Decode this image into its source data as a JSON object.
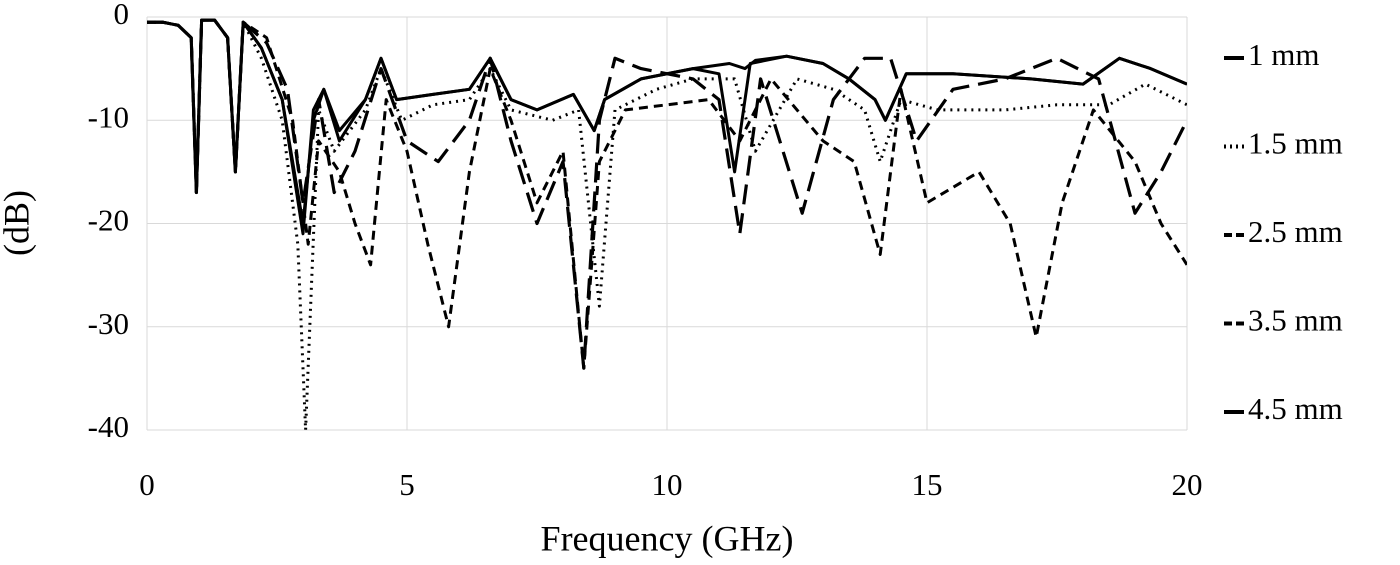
{
  "chart_data": {
    "type": "line",
    "xlabel": "Frequency (GHz)",
    "ylabel": "(dB)",
    "xlim": [
      0,
      20
    ],
    "ylim": [
      -40,
      0
    ],
    "xticks": [
      0,
      5,
      10,
      15,
      20
    ],
    "yticks": [
      0,
      -10,
      -20,
      -30,
      -40
    ],
    "grid": true,
    "legend": "right",
    "series": [
      {
        "name": "1 mm",
        "color": "#000000",
        "dash": "solid",
        "x": [
          0,
          0.3,
          0.6,
          0.85,
          0.95,
          1.05,
          1.3,
          1.55,
          1.7,
          1.85,
          2.2,
          2.6,
          3.0,
          3.2,
          3.4,
          3.7,
          4.2,
          4.5,
          4.8,
          5.5,
          6.2,
          6.6,
          7.0,
          7.5,
          8.2,
          8.6,
          8.8,
          9.5,
          10.5,
          11.0,
          11.3,
          11.6,
          12.3,
          13.0,
          13.5,
          14.0,
          14.2,
          14.6,
          15.5,
          17,
          18,
          18.7,
          19.3,
          20
        ],
        "values": [
          -0.5,
          -0.5,
          -0.8,
          -2,
          -17,
          -0.3,
          -0.3,
          -2,
          -15,
          -0.5,
          -3,
          -8,
          -20,
          -10,
          -7,
          -11,
          -8,
          -4,
          -8,
          -7.5,
          -7,
          -4,
          -8,
          -9,
          -7.5,
          -11,
          -8,
          -6,
          -5,
          -5.5,
          -15,
          -4.5,
          -3.8,
          -4.5,
          -6,
          -8,
          -10,
          -5.5,
          -5.5,
          -6,
          -6.5,
          -4,
          -5,
          -6.5
        ]
      },
      {
        "name": "1.5 mm",
        "color": "#000000",
        "dash": "dotted",
        "x": [
          0,
          0.3,
          0.6,
          0.85,
          0.95,
          1.05,
          1.3,
          1.55,
          1.7,
          1.85,
          2.2,
          2.6,
          2.9,
          3.05,
          3.3,
          3.6,
          4.2,
          4.5,
          4.9,
          5.5,
          6.2,
          6.6,
          7.0,
          7.8,
          8.3,
          8.7,
          9.0,
          9.8,
          10.5,
          11.3,
          11.7,
          12.5,
          13.2,
          13.8,
          14.1,
          14.5,
          15.2,
          16.5,
          17.5,
          18.5,
          19.2,
          20
        ],
        "values": [
          -0.5,
          -0.5,
          -0.8,
          -2,
          -17,
          -0.3,
          -0.3,
          -2,
          -15,
          -0.5,
          -4,
          -10,
          -22,
          -40,
          -9,
          -13,
          -9,
          -5,
          -10,
          -8.5,
          -8,
          -5,
          -9,
          -10,
          -9,
          -28,
          -9,
          -7,
          -6,
          -6,
          -13,
          -6,
          -7,
          -9,
          -14,
          -8,
          -9,
          -9,
          -8.5,
          -8.5,
          -6.5,
          -8.5
        ]
      },
      {
        "name": "2.5 mm",
        "color": "#000000",
        "dash": "short-dash",
        "x": [
          0,
          0.3,
          0.6,
          0.85,
          0.95,
          1.05,
          1.3,
          1.55,
          1.7,
          1.85,
          2.3,
          2.8,
          3.1,
          3.3,
          3.7,
          4.0,
          4.3,
          4.6,
          5.0,
          5.4,
          5.8,
          6.2,
          6.6,
          7.0,
          7.5,
          8.0,
          8.4,
          8.7,
          9.2,
          10.0,
          10.8,
          11.4,
          12.0,
          13.0,
          13.6,
          14.1,
          14.5,
          15.0,
          16.0,
          16.6,
          17.1,
          17.6,
          18.2,
          19.0,
          19.5,
          20
        ],
        "values": [
          -0.5,
          -0.5,
          -0.8,
          -2,
          -17,
          -0.3,
          -0.3,
          -2,
          -15,
          -0.5,
          -2,
          -10,
          -22,
          -12,
          -15,
          -20,
          -24,
          -8,
          -13,
          -22,
          -30,
          -15,
          -5,
          -10,
          -18,
          -13,
          -34,
          -14,
          -9,
          -8.5,
          -8,
          -12,
          -6,
          -12,
          -14,
          -23,
          -7,
          -18,
          -15,
          -20,
          -31,
          -18,
          -9,
          -14,
          -20,
          -24
        ]
      },
      {
        "name": "3.5 mm",
        "color": "#000000",
        "dash": "long-dash",
        "x": [
          0,
          0.3,
          0.6,
          0.85,
          0.95,
          1.05,
          1.3,
          1.55,
          1.7,
          1.85,
          2.3,
          2.7,
          3.0,
          3.3,
          3.6,
          4.0,
          4.5,
          5.0,
          5.6,
          6.2,
          6.6,
          7.0,
          7.5,
          8.0,
          8.4,
          8.7,
          9.0,
          9.5,
          10.5,
          11.0,
          11.4,
          11.8,
          12.6,
          13.2,
          13.8,
          14.3,
          14.8,
          15.5,
          16.5,
          17.5,
          18.3,
          19.0,
          19.5,
          20
        ],
        "values": [
          -0.5,
          -0.5,
          -0.8,
          -2,
          -17,
          -0.3,
          -0.3,
          -2,
          -15,
          -0.5,
          -2.5,
          -7,
          -18,
          -8,
          -17,
          -13,
          -5,
          -12,
          -14,
          -10,
          -4,
          -12,
          -20,
          -14,
          -34,
          -10,
          -4,
          -5,
          -6,
          -8,
          -21,
          -6,
          -19,
          -8,
          -4,
          -4,
          -12,
          -7,
          -6,
          -4,
          -6,
          -19,
          -15,
          -10
        ]
      },
      {
        "name": "4.5 mm",
        "color": "#000000",
        "dash": "solid",
        "x": [
          0,
          0.3,
          0.6,
          0.85,
          0.95,
          1.05,
          1.3,
          1.55,
          1.7,
          1.85,
          2.2,
          2.6,
          3.0,
          3.2,
          3.4,
          3.7,
          4.2,
          4.5,
          4.8,
          5.5,
          6.2,
          6.6,
          7.0,
          7.5,
          8.2,
          8.6,
          8.8,
          9.5,
          10.5,
          11.2,
          11.5,
          11.7,
          12.3,
          13.0,
          13.5,
          14.0,
          14.2,
          14.6,
          15.5,
          17,
          18,
          18.7,
          19.3,
          20
        ],
        "values": [
          -0.5,
          -0.5,
          -0.8,
          -2,
          -17,
          -0.3,
          -0.3,
          -2,
          -15,
          -0.5,
          -3,
          -8,
          -21,
          -9,
          -7,
          -12,
          -8,
          -4,
          -8,
          -7.5,
          -7,
          -4,
          -8,
          -9,
          -7.5,
          -11,
          -8,
          -6,
          -5,
          -4.5,
          -5,
          -4.2,
          -3.8,
          -4.5,
          -6,
          -8,
          -10,
          -5.5,
          -5.5,
          -6,
          -6.5,
          -4,
          -5,
          -6.5
        ]
      }
    ]
  }
}
